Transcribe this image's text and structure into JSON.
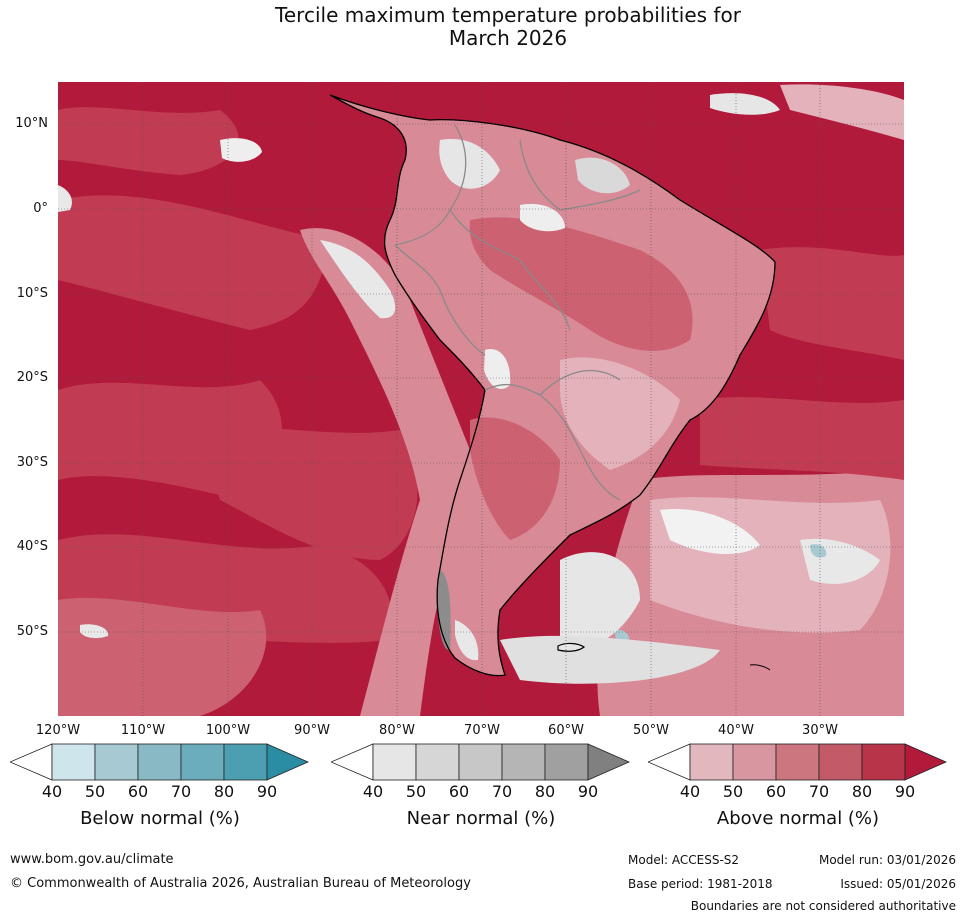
{
  "title_line1": "Tercile maximum temperature probabilities for",
  "title_line2": "March 2026",
  "map": {
    "lat_labels": [
      "10°N",
      "0°",
      "10°S",
      "20°S",
      "30°S",
      "40°S",
      "50°S"
    ],
    "lon_labels": [
      "120°W",
      "110°W",
      "100°W",
      "90°W",
      "80°W",
      "70°W",
      "60°W",
      "50°W",
      "40°W",
      "30°W"
    ],
    "colors": {
      "above_90": "#b11a3b",
      "above_80": "#c13c52",
      "above_70": "#cc6172",
      "above_60": "#d88a96",
      "above_50": "#e3b2ba",
      "near_50": "#d9d9d9",
      "near_40": "#e8e8e8",
      "below_50": "#a6c9d2",
      "coast": "#000000",
      "border": "#8a8a8a"
    }
  },
  "legends": [
    {
      "title": "Below normal (%)",
      "ticks": [
        "40",
        "50",
        "60",
        "70",
        "80",
        "90"
      ],
      "colors": [
        "#ffffff",
        "#cfe5ec",
        "#a6c9d2",
        "#8ab9c6",
        "#6badbc",
        "#4c9fb0",
        "#2a8da4"
      ]
    },
    {
      "title": "Near normal (%)",
      "ticks": [
        "40",
        "50",
        "60",
        "70",
        "80",
        "90"
      ],
      "colors": [
        "#ffffff",
        "#e6e6e6",
        "#d6d6d6",
        "#c7c7c7",
        "#b5b5b5",
        "#a0a0a0",
        "#808080"
      ]
    },
    {
      "title": "Above normal (%)",
      "ticks": [
        "40",
        "50",
        "60",
        "70",
        "80",
        "90"
      ],
      "colors": [
        "#ffffff",
        "#e3b7be",
        "#d896a0",
        "#cc7680",
        "#c35a68",
        "#b83449",
        "#b11a3b"
      ]
    }
  ],
  "footer": {
    "website": "www.bom.gov.au/climate",
    "copyright": "© Commonwealth of Australia 2026, Australian Bureau of Meteorology",
    "model": "Model: ACCESS-S2",
    "base_period": "Base period: 1981-2018",
    "model_run": "Model run: 03/01/2026",
    "issued": "Issued: 05/01/2026",
    "disclaimer": "Boundaries are not considered authoritative"
  }
}
